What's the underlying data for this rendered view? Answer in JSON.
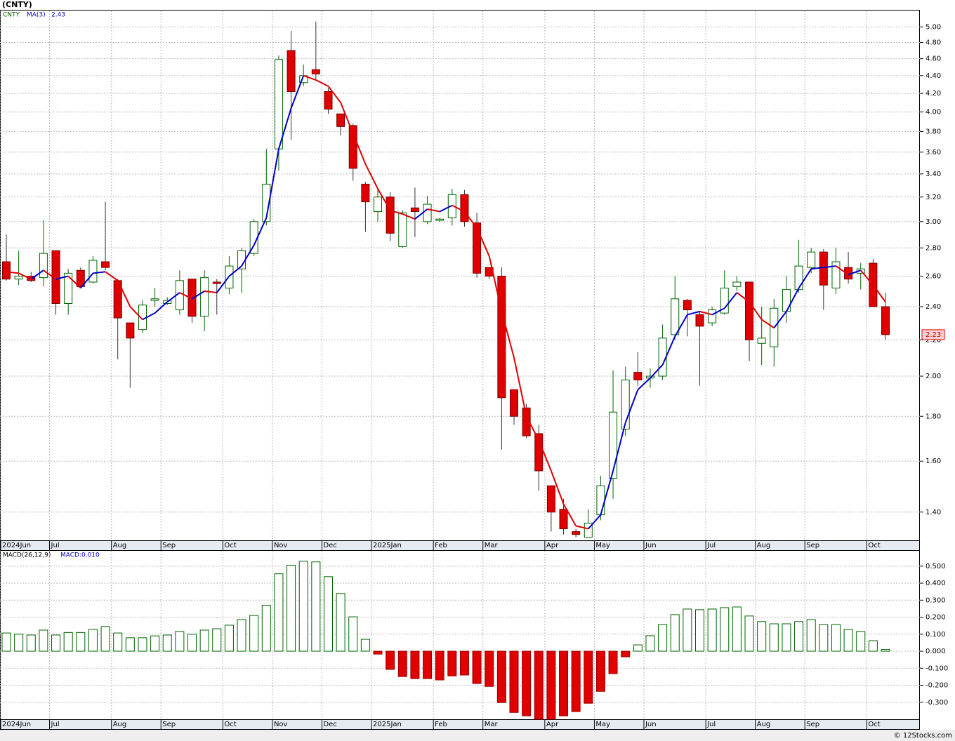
{
  "chart_data": [
    {
      "type": "candlestick",
      "title": "(CNTY)",
      "symbol": "CNTY",
      "categories": [
        "2024Jun",
        null,
        null,
        null,
        "Jul",
        null,
        null,
        null,
        null,
        "Aug",
        null,
        null,
        null,
        "Sep",
        null,
        null,
        null,
        null,
        "Oct",
        null,
        null,
        null,
        "Nov",
        null,
        null,
        null,
        "Dec",
        null,
        null,
        null,
        "2025Jan",
        null,
        null,
        null,
        null,
        "Feb",
        null,
        null,
        null,
        "Mar",
        null,
        null,
        null,
        null,
        "Apr",
        null,
        null,
        null,
        "May",
        null,
        null,
        null,
        "Jun",
        null,
        null,
        null,
        null,
        "Jul",
        null,
        null,
        null,
        "Aug",
        null,
        null,
        null,
        "Sep",
        null,
        null,
        null,
        null,
        "Oct",
        null
      ],
      "open": [
        2.7,
        2.58,
        2.6,
        2.59,
        2.78,
        2.42,
        2.64,
        2.56,
        2.7,
        2.57,
        2.3,
        2.26,
        2.44,
        2.42,
        2.38,
        2.58,
        2.34,
        2.56,
        2.52,
        2.65,
        2.76,
        3.0,
        3.63,
        4.7,
        4.32,
        4.47,
        4.22,
        3.98,
        3.86,
        3.31,
        3.08,
        3.2,
        2.81,
        3.11,
        3.0,
        3.01,
        3.03,
        3.22,
        2.99,
        2.66,
        2.6,
        1.93,
        1.84,
        1.72,
        1.5,
        1.41,
        1.33,
        1.31,
        1.39,
        1.53,
        1.74,
        2.02,
        1.99,
        2.0,
        2.23,
        2.44,
        2.35,
        2.3,
        2.36,
        2.53,
        2.56,
        2.18,
        2.16,
        2.37,
        2.51,
        2.66,
        2.77,
        2.52,
        2.66,
        2.62,
        2.69,
        2.4
      ],
      "high": [
        2.9,
        2.78,
        2.63,
        3.01,
        2.78,
        2.65,
        2.66,
        2.74,
        3.16,
        2.58,
        2.3,
        2.44,
        2.52,
        2.46,
        2.64,
        2.58,
        2.64,
        2.58,
        2.74,
        2.8,
        3.02,
        3.63,
        4.64,
        4.95,
        4.53,
        5.07,
        4.26,
        3.98,
        3.88,
        3.33,
        3.28,
        3.24,
        3.09,
        3.28,
        3.21,
        3.03,
        3.27,
        3.26,
        3.07,
        2.66,
        2.66,
        1.93,
        1.86,
        1.76,
        1.5,
        1.45,
        1.34,
        1.41,
        1.54,
        2.03,
        2.05,
        2.13,
        2.04,
        2.29,
        2.6,
        2.45,
        2.37,
        2.4,
        2.64,
        2.6,
        2.56,
        2.4,
        2.45,
        2.6,
        2.86,
        2.8,
        2.79,
        2.8,
        2.77,
        2.69,
        2.72,
        2.49
      ],
      "low": [
        2.57,
        2.54,
        2.56,
        2.53,
        2.35,
        2.35,
        2.52,
        2.55,
        2.64,
        2.09,
        1.94,
        2.24,
        2.4,
        2.41,
        2.35,
        2.3,
        2.25,
        2.35,
        2.48,
        2.49,
        2.74,
        2.97,
        3.43,
        3.72,
        4.28,
        4.35,
        3.98,
        3.76,
        3.34,
        2.92,
        3.0,
        2.85,
        2.8,
        2.88,
        2.98,
        3.0,
        2.97,
        2.96,
        2.59,
        2.58,
        1.65,
        1.76,
        1.7,
        1.48,
        1.33,
        1.32,
        1.31,
        1.31,
        1.37,
        1.45,
        1.71,
        1.95,
        1.94,
        1.98,
        2.2,
        2.22,
        1.95,
        2.28,
        2.35,
        2.5,
        2.08,
        2.06,
        2.05,
        2.3,
        2.49,
        2.62,
        2.38,
        2.48,
        2.55,
        2.51,
        2.4,
        2.2
      ],
      "close": [
        2.58,
        2.6,
        2.57,
        2.76,
        2.42,
        2.62,
        2.53,
        2.71,
        2.66,
        2.33,
        2.21,
        2.41,
        2.45,
        2.44,
        2.57,
        2.34,
        2.59,
        2.55,
        2.67,
        2.78,
        3.0,
        3.31,
        4.59,
        4.22,
        4.4,
        4.42,
        4.03,
        3.85,
        3.45,
        3.16,
        3.2,
        2.91,
        3.07,
        3.08,
        3.14,
        3.02,
        3.22,
        3.0,
        2.62,
        2.6,
        1.89,
        1.8,
        1.71,
        1.56,
        1.4,
        1.34,
        1.32,
        1.36,
        1.5,
        1.82,
        1.98,
        1.98,
        2.0,
        2.21,
        2.45,
        2.38,
        2.28,
        2.38,
        2.52,
        2.56,
        2.2,
        2.21,
        2.39,
        2.51,
        2.67,
        2.77,
        2.54,
        2.7,
        2.58,
        2.65,
        2.4,
        2.23
      ],
      "ma": {
        "name": "MA(3)",
        "rise_color": "#0000cc",
        "fall_color": "#e00000",
        "values": [
          2.63,
          2.62,
          2.58,
          2.64,
          2.58,
          2.6,
          2.52,
          2.62,
          2.63,
          2.57,
          2.4,
          2.32,
          2.36,
          2.43,
          2.49,
          2.45,
          2.5,
          2.49,
          2.6,
          2.67,
          2.82,
          3.03,
          3.63,
          4.04,
          4.4,
          4.35,
          4.28,
          4.1,
          3.78,
          3.49,
          3.27,
          3.09,
          3.06,
          3.02,
          3.1,
          3.08,
          3.13,
          3.08,
          2.95,
          2.74,
          2.37,
          2.1,
          1.8,
          1.69,
          1.56,
          1.43,
          1.35,
          1.34,
          1.39,
          1.56,
          1.77,
          1.93,
          1.99,
          2.06,
          2.22,
          2.35,
          2.37,
          2.35,
          2.39,
          2.49,
          2.43,
          2.32,
          2.27,
          2.37,
          2.52,
          2.65,
          2.66,
          2.67,
          2.61,
          2.64,
          2.54,
          2.43
        ]
      },
      "up_color": "#006400",
      "down_color": "#e00000",
      "log_scale": true,
      "grid": true,
      "ylim": [
        1.3,
        5.22
      ],
      "yticks": [
        {
          "value": 1.4,
          "label": "1.40"
        },
        {
          "value": 1.6,
          "label": "1.60"
        },
        {
          "value": 1.8,
          "label": "1.80"
        },
        {
          "value": 2,
          "label": "2.00"
        },
        {
          "value": 2.2,
          "label": "2.20"
        },
        {
          "value": 2.4,
          "label": "2.40"
        },
        {
          "value": 2.6,
          "label": "2.60"
        },
        {
          "value": 2.8,
          "label": "2.80"
        },
        {
          "value": 3,
          "label": "3.00"
        },
        {
          "value": 3.2,
          "label": "3.20"
        },
        {
          "value": 3.4,
          "label": "3.40"
        },
        {
          "value": 3.6,
          "label": "3.60"
        },
        {
          "value": 3.8,
          "label": "3.80"
        },
        {
          "value": 4,
          "label": "4.00"
        },
        {
          "value": 4.2,
          "label": "4.20"
        },
        {
          "value": 4.4,
          "label": "4.40"
        },
        {
          "value": 4.6,
          "label": "4.60"
        },
        {
          "value": 4.8,
          "label": "4.80"
        },
        {
          "value": 5,
          "label": "5.00"
        }
      ]
    },
    {
      "type": "bar",
      "title": "MACD(26,12,9)",
      "value_label": "MACD:0.010",
      "categories": [
        "2024Jun",
        null,
        null,
        null,
        "Jul",
        null,
        null,
        null,
        null,
        "Aug",
        null,
        null,
        null,
        "Sep",
        null,
        null,
        null,
        null,
        "Oct",
        null,
        null,
        null,
        "Nov",
        null,
        null,
        null,
        "Dec",
        null,
        null,
        null,
        "2025Jan",
        null,
        null,
        null,
        null,
        "Feb",
        null,
        null,
        null,
        "Mar",
        null,
        null,
        null,
        null,
        "Apr",
        null,
        null,
        null,
        "May",
        null,
        null,
        null,
        "Jun",
        null,
        null,
        null,
        null,
        "Jul",
        null,
        null,
        null,
        "Aug",
        null,
        null,
        null,
        "Sep",
        null,
        null,
        null,
        null,
        "Oct",
        null
      ],
      "values": [
        0.107,
        0.1,
        0.095,
        0.124,
        0.095,
        0.11,
        0.11,
        0.128,
        0.145,
        0.107,
        0.079,
        0.079,
        0.09,
        0.095,
        0.116,
        0.1,
        0.124,
        0.132,
        0.153,
        0.186,
        0.21,
        0.27,
        0.455,
        0.505,
        0.529,
        0.525,
        0.438,
        0.339,
        0.202,
        0.07,
        -0.017,
        -0.107,
        -0.149,
        -0.161,
        -0.161,
        -0.169,
        -0.145,
        -0.14,
        -0.19,
        -0.207,
        -0.302,
        -0.36,
        -0.38,
        -0.4,
        -0.4,
        -0.38,
        -0.355,
        -0.306,
        -0.236,
        -0.132,
        -0.033,
        0.037,
        0.091,
        0.157,
        0.215,
        0.248,
        0.244,
        0.248,
        0.256,
        0.26,
        0.207,
        0.174,
        0.161,
        0.161,
        0.174,
        0.186,
        0.157,
        0.157,
        0.128,
        0.116,
        0.062,
        0.01
      ],
      "pos_color": "#006400",
      "neg_color": "#e00000",
      "grid": true,
      "ylim": [
        -0.4,
        0.59
      ],
      "yticks": [
        {
          "value": -0.3,
          "label": "-0.300"
        },
        {
          "value": -0.2,
          "label": "-0.200"
        },
        {
          "value": -0.1,
          "label": "-0.100"
        },
        {
          "value": 0,
          "label": "0.000"
        },
        {
          "value": 0.1,
          "label": "0.100"
        },
        {
          "value": 0.2,
          "label": "0.200"
        },
        {
          "value": 0.3,
          "label": "0.300"
        },
        {
          "value": 0.4,
          "label": "0.400"
        },
        {
          "value": 0.5,
          "label": "0.500"
        }
      ]
    }
  ],
  "footer": "© 12Stocks.com"
}
